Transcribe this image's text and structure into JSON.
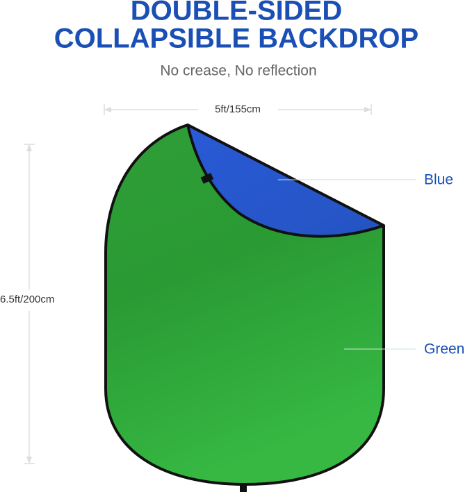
{
  "header": {
    "title_lines": [
      "DOUBLE-SIDED",
      "COLLAPSIBLE BACKDROP"
    ],
    "subtitle": "No crease, No reflection"
  },
  "dimensions": {
    "width": "5ft/155cm",
    "height": "6.5ft/200cm"
  },
  "labels": {
    "blue": "Blue",
    "green": "Green"
  }
}
